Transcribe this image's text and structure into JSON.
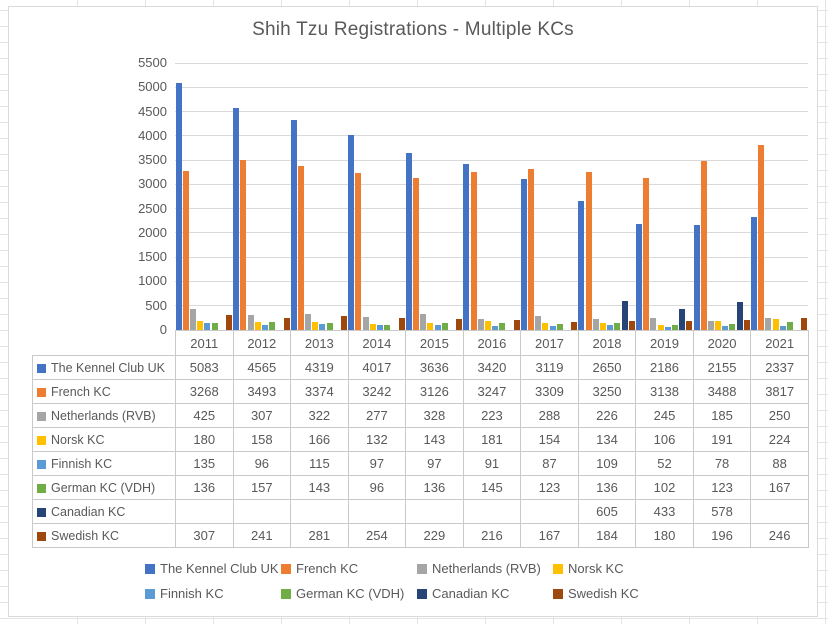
{
  "chart_data": {
    "type": "bar",
    "title": "Shih Tzu Registrations - Multiple KCs",
    "categories": [
      "2011",
      "2012",
      "2013",
      "2014",
      "2015",
      "2016",
      "2017",
      "2018",
      "2019",
      "2020",
      "2021"
    ],
    "series": [
      {
        "name": "The Kennel Club UK",
        "color": "#4472C4",
        "values": [
          5083,
          4565,
          4319,
          4017,
          3636,
          3420,
          3119,
          2650,
          2186,
          2155,
          2337
        ]
      },
      {
        "name": "French KC",
        "color": "#ED7D31",
        "values": [
          3268,
          3493,
          3374,
          3242,
          3126,
          3247,
          3309,
          3250,
          3138,
          3488,
          3817
        ]
      },
      {
        "name": "Netherlands (RVB)",
        "color": "#A5A5A5",
        "values": [
          425,
          307,
          322,
          277,
          328,
          223,
          288,
          226,
          245,
          185,
          250
        ]
      },
      {
        "name": "Norsk KC",
        "color": "#FFC000",
        "values": [
          180,
          158,
          166,
          132,
          143,
          181,
          154,
          134,
          106,
          191,
          224
        ]
      },
      {
        "name": "Finnish KC",
        "color": "#5B9BD5",
        "values": [
          135,
          96,
          115,
          97,
          97,
          91,
          87,
          109,
          52,
          78,
          88
        ]
      },
      {
        "name": "German KC (VDH)",
        "color": "#70AD47",
        "values": [
          136,
          157,
          143,
          96,
          136,
          145,
          123,
          136,
          102,
          123,
          167
        ]
      },
      {
        "name": "Canadian KC",
        "color": "#264478",
        "values": [
          null,
          null,
          null,
          null,
          null,
          null,
          null,
          605,
          433,
          578,
          null
        ]
      },
      {
        "name": "Swedish KC",
        "color": "#9E480E",
        "values": [
          307,
          241,
          281,
          254,
          229,
          216,
          167,
          184,
          180,
          196,
          246
        ]
      }
    ],
    "ylim": [
      0,
      5500
    ],
    "ytick_step": 500,
    "grid": true,
    "legend_position": "bottom",
    "data_table_with_legend_keys": true,
    "colors": {
      "text": "#595959",
      "gridline": "#D9D9D9",
      "axis_line": "#BFBFBF",
      "table_border": "#C9C9C9"
    }
  }
}
